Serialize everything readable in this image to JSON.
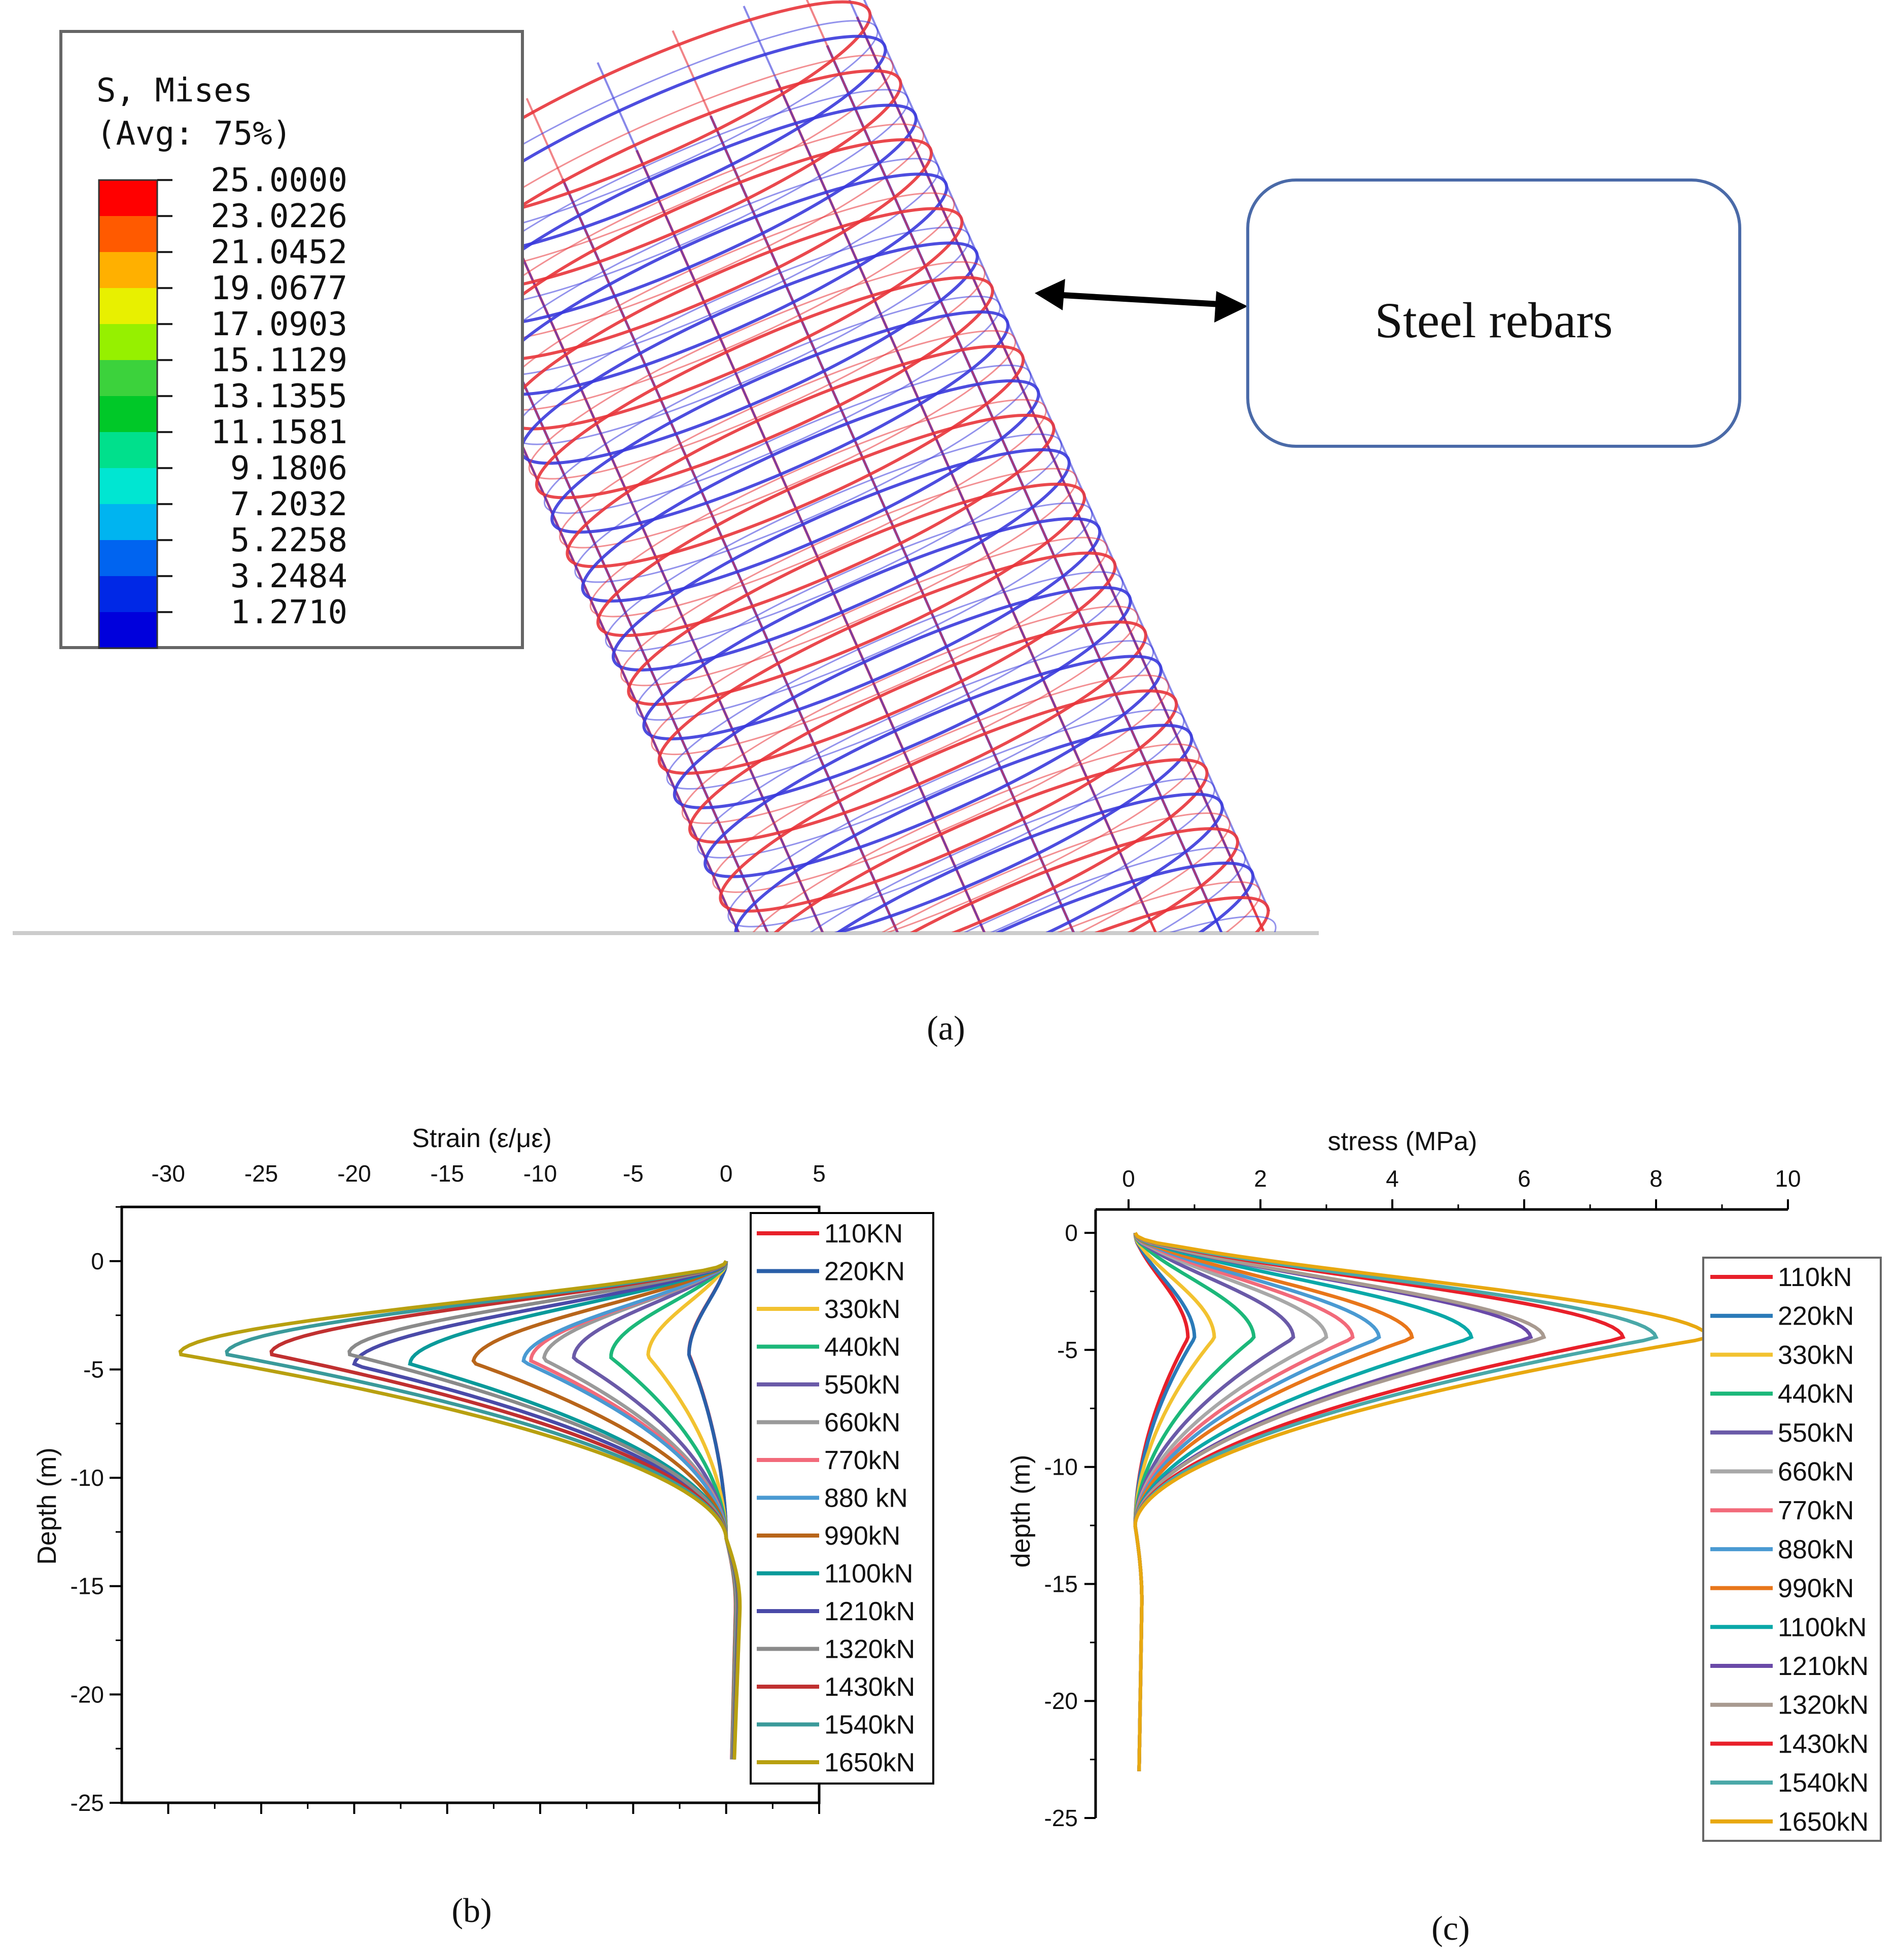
{
  "panel_a": {
    "caption": "(a)",
    "legend": {
      "title_line1": "S, Mises",
      "title_line2": "(Avg: 75%)",
      "levels": [
        "25.0000",
        "23.0226",
        "21.0452",
        "19.0677",
        "17.0903",
        "15.1129",
        "13.1355",
        "11.1581",
        "9.1806",
        "7.2032",
        "5.2258",
        "3.2484",
        "1.2710"
      ],
      "colors": [
        "#ff0000",
        "#ff5a00",
        "#ffb000",
        "#e8f000",
        "#96f000",
        "#3cd23c",
        "#00c828",
        "#00e08c",
        "#00e6d2",
        "#00b4f0",
        "#0064f0",
        "#0028e6",
        "#0000dc"
      ]
    },
    "callout_label": "Steel rebars",
    "mesh_colors": {
      "red": "#e8343a",
      "blue": "#3a3adc"
    }
  },
  "chart_data": [
    {
      "id": "b",
      "type": "line",
      "caption": "(b)",
      "title": "",
      "xlabel": "Strain (ε/με)",
      "ylabel": "Depth (m)",
      "xlim": [
        -32.5,
        5
      ],
      "ylim": [
        -25,
        2.5
      ],
      "xaxis_position": "top",
      "xticks": [
        -30,
        -25,
        -20,
        -15,
        -10,
        -5,
        0,
        5
      ],
      "xtick_labels": [
        "-30",
        "-25",
        "-20",
        "-15",
        "-10",
        "-5",
        "0",
        "5"
      ],
      "yticks": [
        0,
        -5,
        -10,
        -15,
        -20,
        -25
      ],
      "ytick_labels": [
        "0",
        "-5",
        "-10",
        "-15",
        "-20",
        "-25"
      ],
      "legend_position": "top-right",
      "peak_depth": -4.3,
      "zero_cross_depth": -12.8,
      "bottom_depth": -23,
      "series": [
        {
          "name": "110KN",
          "color": "#e8202a",
          "peak": -2.0
        },
        {
          "name": "220KN",
          "color": "#2a5fa8",
          "peak": -2.0
        },
        {
          "name": "330kN",
          "color": "#f2c230",
          "peak": -4.2
        },
        {
          "name": "440kN",
          "color": "#1cb87a",
          "peak": -6.2
        },
        {
          "name": "550kN",
          "color": "#6a5aa8",
          "peak": -8.2
        },
        {
          "name": "660kN",
          "color": "#9a9a9a",
          "peak": -9.8
        },
        {
          "name": "770kN",
          "color": "#f26a7a",
          "peak": -10.5
        },
        {
          "name": "880 kN",
          "color": "#4a9ad2",
          "peak": -10.9
        },
        {
          "name": "990kN",
          "color": "#b8651a",
          "peak": -13.6
        },
        {
          "name": "1100kN",
          "color": "#0a9a9a",
          "peak": -17.0
        },
        {
          "name": "1210kN",
          "color": "#4a4aa8",
          "peak": -20.0
        },
        {
          "name": "1320kN",
          "color": "#8a8a8a",
          "peak": -20.3
        },
        {
          "name": "1430kN",
          "color": "#c03030",
          "peak": -24.5
        },
        {
          "name": "1540kN",
          "color": "#3a9a9a",
          "peak": -26.9
        },
        {
          "name": "1650kN",
          "color": "#b8a010",
          "peak": -29.4
        }
      ]
    },
    {
      "id": "c",
      "type": "line",
      "caption": "(c)",
      "title": "",
      "xlabel": "stress (MPa)",
      "ylabel": "depth (m)",
      "xlim": [
        -0.5,
        10
      ],
      "ylim": [
        -25,
        1
      ],
      "xaxis_position": "top",
      "xticks": [
        0,
        2,
        4,
        6,
        8,
        10
      ],
      "xtick_labels": [
        "0",
        "2",
        "4",
        "6",
        "8",
        "10"
      ],
      "yticks": [
        0,
        -5,
        -10,
        -15,
        -20,
        -25
      ],
      "ytick_labels": [
        "0",
        "-5",
        "-10",
        "-15",
        "-20",
        "-25"
      ],
      "legend_position": "right",
      "peak_depth": -4.5,
      "zero_cross_depth": -12.5,
      "bottom_depth": -23,
      "series": [
        {
          "name": "110kN",
          "color": "#e8202a",
          "peak": 0.8
        },
        {
          "name": "220kN",
          "color": "#2a7ab8",
          "peak": 0.9
        },
        {
          "name": "330kN",
          "color": "#f2c230",
          "peak": 1.2
        },
        {
          "name": "440kN",
          "color": "#1cb87a",
          "peak": 1.8
        },
        {
          "name": "550kN",
          "color": "#6a5aa8",
          "peak": 2.4
        },
        {
          "name": "660kN",
          "color": "#a8a8a8",
          "peak": 2.9
        },
        {
          "name": "770kN",
          "color": "#f26a7a",
          "peak": 3.3
        },
        {
          "name": "880kN",
          "color": "#4a9ad2",
          "peak": 3.7
        },
        {
          "name": "990kN",
          "color": "#e8761a",
          "peak": 4.2
        },
        {
          "name": "1100kN",
          "color": "#0aa8a8",
          "peak": 5.1
        },
        {
          "name": "1210kN",
          "color": "#6a4aa8",
          "peak": 6.0
        },
        {
          "name": "1320kN",
          "color": "#a89a90",
          "peak": 6.2
        },
        {
          "name": "1430kN",
          "color": "#e8202a",
          "peak": 7.4
        },
        {
          "name": "1540kN",
          "color": "#4aa8a8",
          "peak": 7.9
        },
        {
          "name": "1650kN",
          "color": "#e8a810",
          "peak": 8.7
        }
      ]
    }
  ]
}
